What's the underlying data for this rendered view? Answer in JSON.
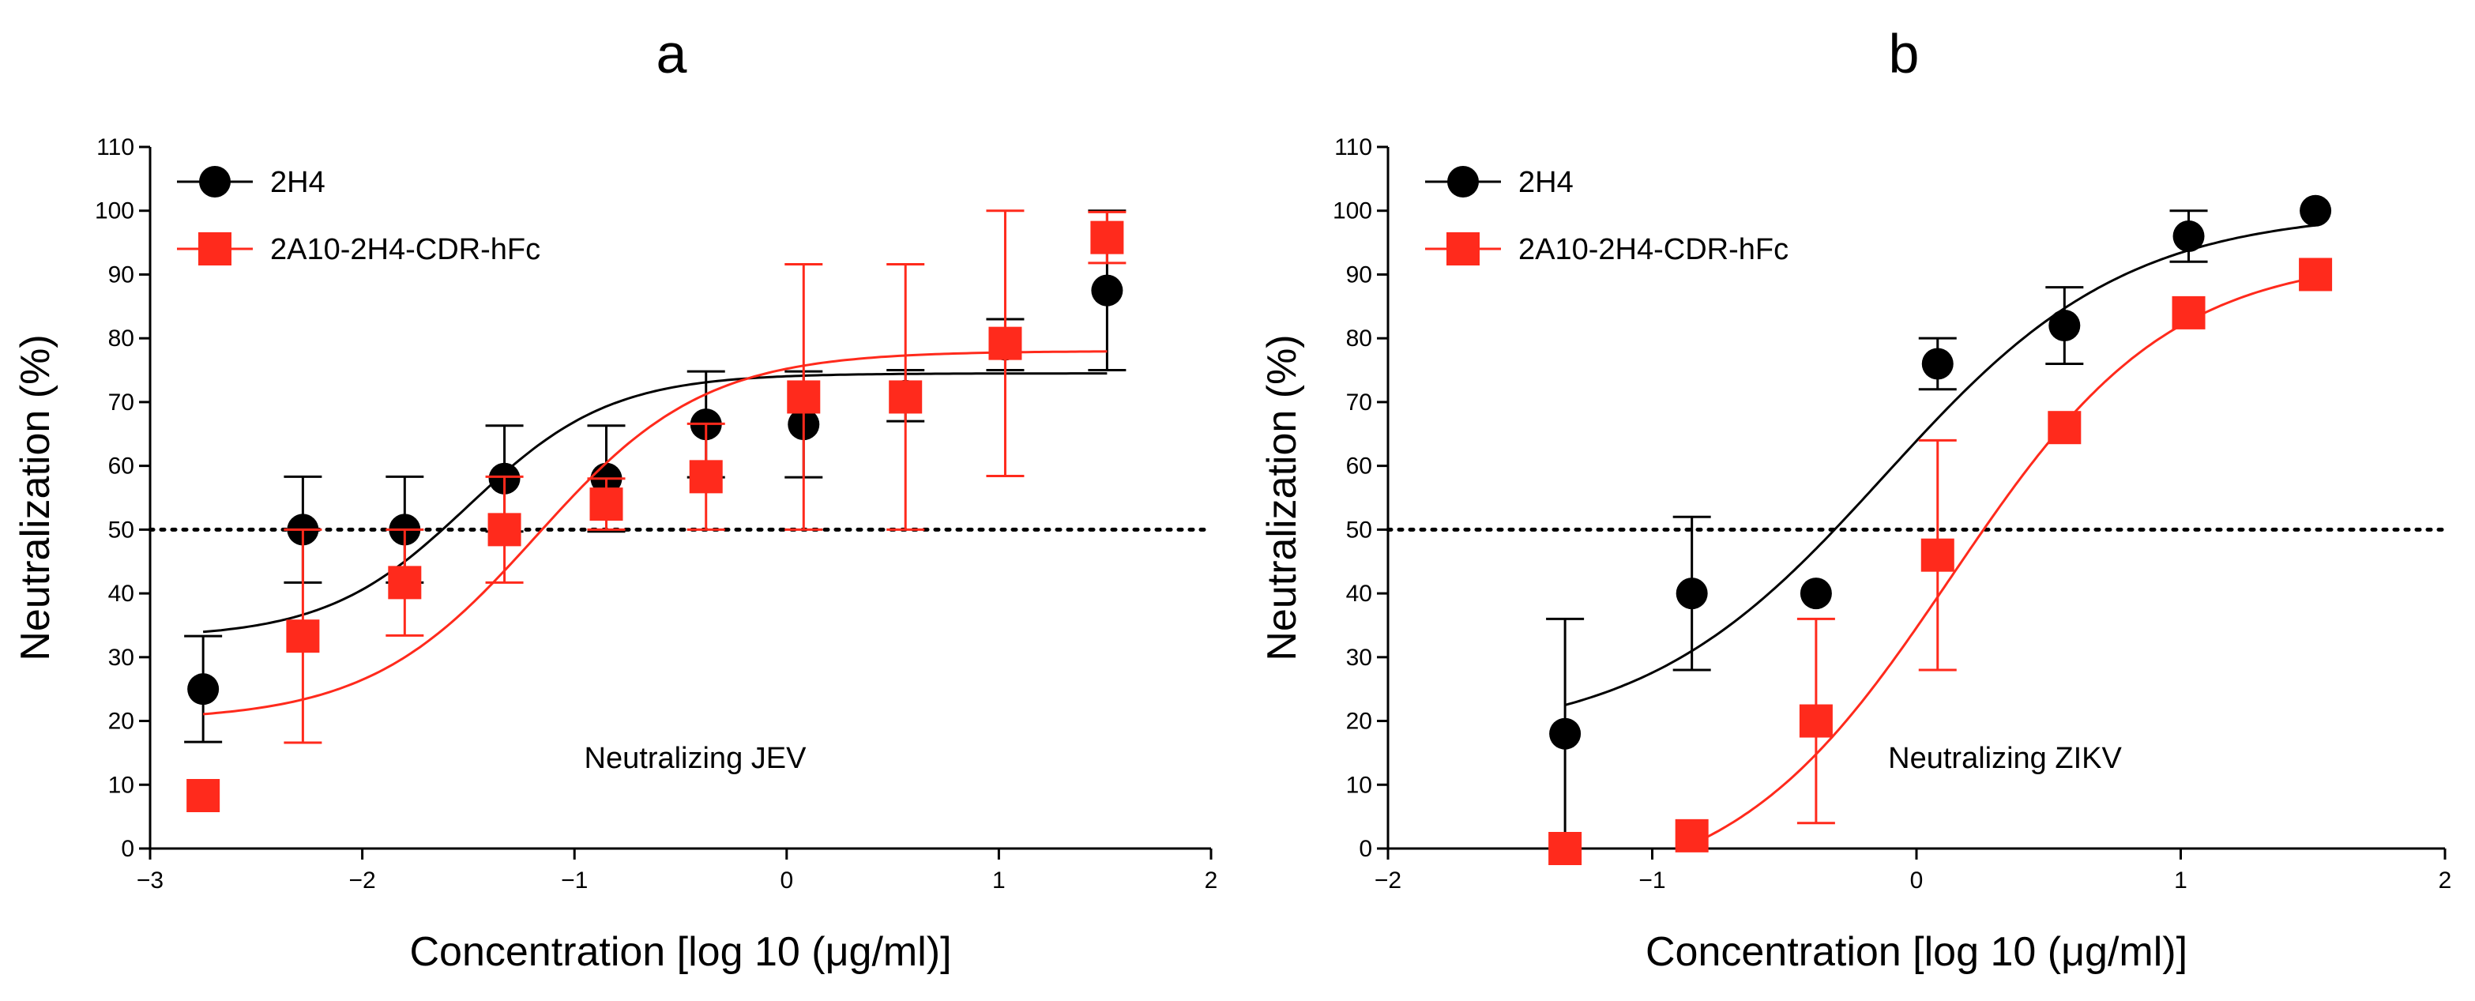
{
  "chart_data": [
    {
      "type": "scatter",
      "panel_label": "a",
      "title": "",
      "xlabel": "Concentration [log 10 (μg/ml)]",
      "ylabel": "Neutralization (%)",
      "xlim": [
        -3,
        2
      ],
      "ylim": [
        0,
        110
      ],
      "x_ticks": [
        -3,
        -2,
        -1,
        0,
        1,
        2
      ],
      "x_tick_labels": [
        "−3",
        "−2",
        "−1",
        "0",
        "1",
        "2"
      ],
      "y_ticks": [
        0,
        10,
        20,
        30,
        40,
        50,
        60,
        70,
        80,
        90,
        100,
        110
      ],
      "y_tick_labels": [
        "0",
        "10",
        "20",
        "30",
        "40",
        "50",
        "60",
        "70",
        "80",
        "90",
        "100",
        "110"
      ],
      "reference_line": 50,
      "annotation": "Neutralizing JEV",
      "legend_position": "top-left",
      "grid": false,
      "series": [
        {
          "name": "2H4",
          "marker": "circle",
          "color": "#000000",
          "x": [
            -2.75,
            -2.28,
            -1.8,
            -1.33,
            -0.85,
            -0.38,
            0.08,
            0.56,
            1.03,
            1.51
          ],
          "y": [
            25,
            50,
            50,
            58,
            58,
            66.5,
            66.5,
            71,
            79,
            87.5
          ],
          "err": [
            8.3,
            8.3,
            8.3,
            8.3,
            8.3,
            8.3,
            8.3,
            4,
            4,
            12.5
          ],
          "fit": {
            "bottom": 33,
            "top": 74.5,
            "log_ec50": -1.5,
            "hill": 1.3,
            "x_range": [
              -2.75,
              1.51
            ]
          }
        },
        {
          "name": "2A10-2H4-CDR-hFc",
          "marker": "square",
          "color": "#ff2a1c",
          "x": [
            -2.75,
            -2.28,
            -1.8,
            -1.33,
            -0.85,
            -0.38,
            0.08,
            0.56,
            1.03,
            1.51
          ],
          "y": [
            8.3,
            33.3,
            41.7,
            50,
            54,
            58.3,
            70.8,
            70.8,
            79.2,
            95.8
          ],
          "err": [
            0,
            16.7,
            8.3,
            8.3,
            4,
            8.3,
            20.8,
            20.8,
            20.8,
            4
          ],
          "fit": {
            "bottom": 20,
            "top": 78,
            "log_ec50": -1.18,
            "hill": 1.1,
            "x_range": [
              -2.75,
              1.51
            ]
          }
        }
      ]
    },
    {
      "type": "scatter",
      "panel_label": "b",
      "title": "",
      "xlabel": "Concentration [log 10 (μg/ml)]",
      "ylabel": "Neutralization (%)",
      "xlim": [
        -2,
        2
      ],
      "ylim": [
        0,
        110
      ],
      "x_ticks": [
        -2,
        -1,
        0,
        1,
        2
      ],
      "x_tick_labels": [
        "−2",
        "−1",
        "0",
        "1",
        "2"
      ],
      "y_ticks": [
        0,
        10,
        20,
        30,
        40,
        50,
        60,
        70,
        80,
        90,
        100,
        110
      ],
      "y_tick_labels": [
        "0",
        "10",
        "20",
        "30",
        "40",
        "50",
        "60",
        "70",
        "80",
        "90",
        "100",
        "110"
      ],
      "reference_line": 50,
      "annotation": "Neutralizing ZIKV",
      "legend_position": "top-left",
      "grid": false,
      "series": [
        {
          "name": "2H4",
          "marker": "circle",
          "color": "#000000",
          "x": [
            -1.33,
            -0.85,
            -0.38,
            0.08,
            0.56,
            1.03,
            1.51
          ],
          "y": [
            18,
            40,
            40,
            76,
            82,
            96,
            100
          ],
          "err": [
            18,
            12,
            0,
            4,
            6,
            4,
            0
          ],
          "fit": {
            "bottom": 17,
            "top": 100,
            "log_ec50": -0.12,
            "hill": 0.95,
            "x_range": [
              -1.33,
              1.51
            ]
          }
        },
        {
          "name": "2A10-2H4-CDR-hFc",
          "marker": "square",
          "color": "#ff2a1c",
          "x": [
            -1.33,
            -0.85,
            -0.38,
            0.08,
            0.56,
            1.03,
            1.51
          ],
          "y": [
            0,
            2,
            20,
            46,
            66,
            84,
            90
          ],
          "err": [
            0,
            0,
            16,
            18,
            0,
            0,
            0
          ],
          "fit": {
            "bottom": -8,
            "top": 93,
            "log_ec50": 0.13,
            "hill": 1.05,
            "x_range": [
              -1.33,
              1.51
            ]
          }
        }
      ]
    }
  ]
}
